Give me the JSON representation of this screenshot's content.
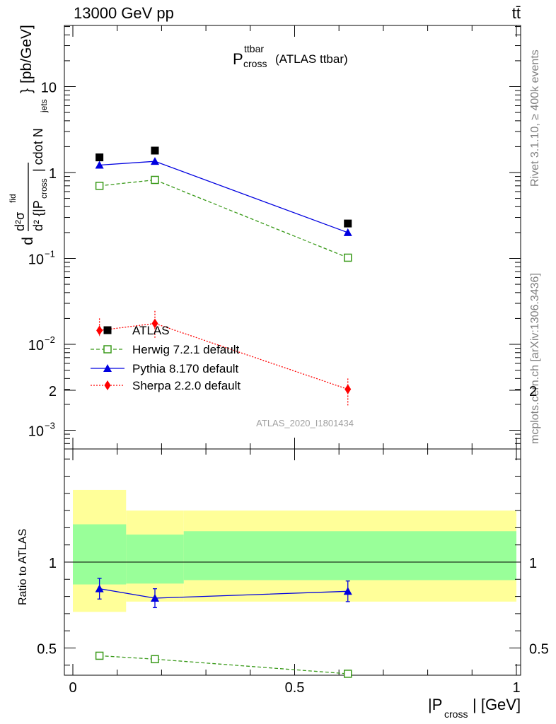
{
  "header": {
    "energy_label": "13000 GeV pp",
    "process_label": "tt̄"
  },
  "plot_title": {
    "main": "P",
    "sup": "ttbar",
    "sub": "cross",
    "suffix": "(ATLAS ttbar)"
  },
  "side_labels": {
    "rivet": "Rivet 3.1.10, ≥ 400k events",
    "mcplots": "mcplots.cern.ch [arXiv:1306.3436]"
  },
  "analysis_id": "ATLAS_2020_I1801434",
  "colors": {
    "atlas": "#000000",
    "herwig": "#3a9a1a",
    "pythia": "#0000e0",
    "sherpa": "#ff0000",
    "band_inner": "#99ff99",
    "band_outer": "#ffff99"
  },
  "chart_data": [
    {
      "type": "scatter",
      "panel": "main",
      "yscale": "log",
      "xlim": [
        0,
        1
      ],
      "ylim": [
        0.0005,
        50
      ],
      "ylabel": {
        "lead": "d",
        "num": "d²σ",
        "num_sup": "fid",
        "den": "d² {|P",
        "den_sub": "cross",
        "den_mid": "| cdot N",
        "den_sub2": "jets",
        "close": "}",
        "unit": "[pb/GeV]"
      },
      "y_ticks": [
        {
          "value": 0.001,
          "base": "10",
          "exp": "−3"
        },
        {
          "value": 0.01,
          "base": "10",
          "exp": "−2"
        },
        {
          "value": 0.1,
          "base": "10",
          "exp": "−1"
        },
        {
          "value": 1,
          "base": "1",
          "exp": ""
        },
        {
          "value": 10,
          "base": "10",
          "exp": ""
        }
      ],
      "series": [
        {
          "name": "ATLAS",
          "key": "atlas",
          "marker": "square",
          "x": [
            0.06,
            0.185,
            0.62
          ],
          "y": [
            1.5,
            1.8,
            0.255
          ]
        },
        {
          "name": "Herwig 7.2.1 default",
          "key": "herwig",
          "marker": "open-square",
          "line": "dashed",
          "x": [
            0.06,
            0.185,
            0.62
          ],
          "y": [
            0.7,
            0.82,
            0.102
          ]
        },
        {
          "name": "Pythia 8.170 default",
          "key": "pythia",
          "marker": "triangle",
          "line": "solid",
          "x": [
            0.06,
            0.185,
            0.62
          ],
          "y": [
            1.22,
            1.35,
            0.2
          ]
        },
        {
          "name": "Sherpa 2.2.0 default",
          "key": "sherpa",
          "marker": "diamond",
          "line": "dotted",
          "x": [
            0.06,
            0.185,
            0.62
          ],
          "y": [
            0.0145,
            0.0175,
            0.003
          ],
          "yerr_lo": [
            0.0125,
            0.0115,
            0.0019
          ],
          "yerr_hi": [
            0.02,
            0.0245,
            0.004
          ]
        }
      ],
      "legend_placement": "lower-left"
    },
    {
      "type": "scatter",
      "panel": "ratio",
      "ylabel": "Ratio to ATLAS",
      "xlabel": {
        "pre": "|P",
        "sub": "cross",
        "post": "| [GeV]"
      },
      "xlim": [
        0,
        1
      ],
      "ylim": [
        0.33,
        2.25
      ],
      "x_ticks": [
        {
          "value": 0,
          "label": "0"
        },
        {
          "value": 0.5,
          "label": "0.5"
        },
        {
          "value": 1,
          "label": "1"
        }
      ],
      "y_ticks": [
        {
          "value": 0.5,
          "label": "0.5"
        },
        {
          "value": 1,
          "label": "1"
        },
        {
          "value": 2,
          "label": "2"
        }
      ],
      "bands": [
        {
          "x0": 0.0,
          "x1": 0.12,
          "inner": [
            0.87,
            1.22
          ],
          "outer": [
            0.71,
            1.42
          ]
        },
        {
          "x0": 0.12,
          "x1": 0.25,
          "inner": [
            0.875,
            1.16
          ],
          "outer": [
            0.77,
            1.3
          ]
        },
        {
          "x0": 0.25,
          "x1": 1.0,
          "inner": [
            0.895,
            1.18
          ],
          "outer": [
            0.77,
            1.3
          ]
        }
      ],
      "series": [
        {
          "name": "Pythia 8.170 default",
          "key": "pythia",
          "marker": "triangle",
          "line": "solid",
          "x": [
            0.06,
            0.185,
            0.62
          ],
          "y": [
            0.845,
            0.79,
            0.83
          ],
          "err": [
            0.06,
            0.055,
            0.06
          ]
        },
        {
          "name": "Herwig 7.2.1 default",
          "key": "herwig",
          "marker": "open-square",
          "line": "dashed",
          "x": [
            0.06,
            0.185,
            0.62
          ],
          "y": [
            0.455,
            0.435,
            0.35
          ],
          "err": [
            0.015,
            0.015,
            0.01
          ]
        }
      ]
    }
  ]
}
